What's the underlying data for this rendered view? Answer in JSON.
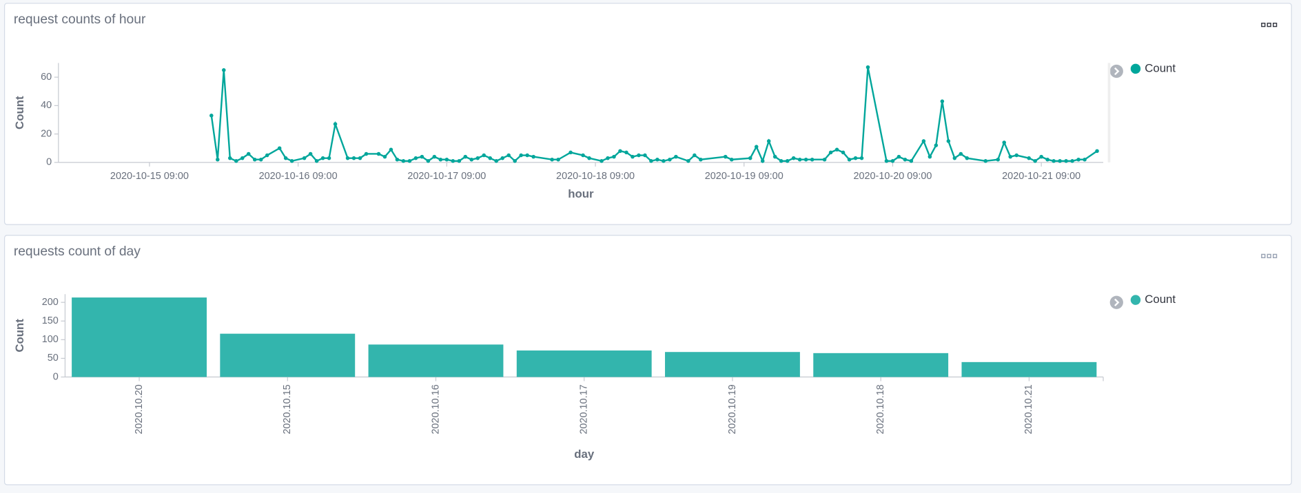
{
  "chart_data": [
    {
      "type": "line",
      "title": "request counts of hour",
      "x_label": "hour",
      "y_label": "Count",
      "legend": "right",
      "x": [
        "2020-10-15 19:00",
        "2020-10-15 20:00",
        "2020-10-15 21:00",
        "2020-10-15 22:00",
        "2020-10-15 23:00",
        "2020-10-16 00:00",
        "2020-10-16 01:00",
        "2020-10-16 02:00",
        "2020-10-16 03:00",
        "2020-10-16 04:00",
        "2020-10-16 06:00",
        "2020-10-16 07:00",
        "2020-10-16 08:00",
        "2020-10-16 10:00",
        "2020-10-16 11:00",
        "2020-10-16 12:00",
        "2020-10-16 13:00",
        "2020-10-16 14:00",
        "2020-10-16 15:00",
        "2020-10-16 17:00",
        "2020-10-16 18:00",
        "2020-10-16 19:00",
        "2020-10-16 20:00",
        "2020-10-16 22:00",
        "2020-10-16 23:00",
        "2020-10-17 00:00",
        "2020-10-17 01:00",
        "2020-10-17 02:00",
        "2020-10-17 03:00",
        "2020-10-17 04:00",
        "2020-10-17 05:00",
        "2020-10-17 06:00",
        "2020-10-17 07:00",
        "2020-10-17 08:00",
        "2020-10-17 09:00",
        "2020-10-17 10:00",
        "2020-10-17 11:00",
        "2020-10-17 12:00",
        "2020-10-17 13:00",
        "2020-10-17 14:00",
        "2020-10-17 15:00",
        "2020-10-17 16:00",
        "2020-10-17 17:00",
        "2020-10-17 18:00",
        "2020-10-17 19:00",
        "2020-10-17 20:00",
        "2020-10-17 21:00",
        "2020-10-17 22:00",
        "2020-10-17 23:00",
        "2020-10-18 02:00",
        "2020-10-18 03:00",
        "2020-10-18 05:00",
        "2020-10-18 07:00",
        "2020-10-18 08:00",
        "2020-10-18 10:00",
        "2020-10-18 11:00",
        "2020-10-18 12:00",
        "2020-10-18 13:00",
        "2020-10-18 14:00",
        "2020-10-18 15:00",
        "2020-10-18 16:00",
        "2020-10-18 17:00",
        "2020-10-18 18:00",
        "2020-10-18 19:00",
        "2020-10-18 20:00",
        "2020-10-18 21:00",
        "2020-10-18 22:00",
        "2020-10-19 00:00",
        "2020-10-19 01:00",
        "2020-10-19 02:00",
        "2020-10-19 06:00",
        "2020-10-19 07:00",
        "2020-10-19 10:00",
        "2020-10-19 11:00",
        "2020-10-19 12:00",
        "2020-10-19 13:00",
        "2020-10-19 14:00",
        "2020-10-19 15:00",
        "2020-10-19 16:00",
        "2020-10-19 17:00",
        "2020-10-19 18:00",
        "2020-10-19 19:00",
        "2020-10-19 20:00",
        "2020-10-19 22:00",
        "2020-10-19 23:00",
        "2020-10-20 00:00",
        "2020-10-20 01:00",
        "2020-10-20 02:00",
        "2020-10-20 03:00",
        "2020-10-20 04:00",
        "2020-10-20 05:00",
        "2020-10-20 08:00",
        "2020-10-20 09:00",
        "2020-10-20 10:00",
        "2020-10-20 11:00",
        "2020-10-20 12:00",
        "2020-10-20 14:00",
        "2020-10-20 15:00",
        "2020-10-20 16:00",
        "2020-10-20 17:00",
        "2020-10-20 18:00",
        "2020-10-20 19:00",
        "2020-10-20 20:00",
        "2020-10-20 21:00",
        "2020-10-21 00:00",
        "2020-10-21 02:00",
        "2020-10-21 03:00",
        "2020-10-21 04:00",
        "2020-10-21 05:00",
        "2020-10-21 07:00",
        "2020-10-21 08:00",
        "2020-10-21 09:00",
        "2020-10-21 10:00",
        "2020-10-21 11:00",
        "2020-10-21 12:00",
        "2020-10-21 13:00",
        "2020-10-21 14:00",
        "2020-10-21 15:00",
        "2020-10-21 16:00",
        "2020-10-21 18:00"
      ],
      "series": [
        {
          "name": "Count",
          "color": "#00a69b",
          "values": [
            33,
            2,
            65,
            3,
            1,
            3,
            6,
            2,
            2,
            5,
            10,
            3,
            1,
            3,
            6,
            1,
            3,
            3,
            27,
            3,
            3,
            3,
            6,
            6,
            4,
            9,
            2,
            1,
            1,
            3,
            4,
            1,
            4,
            2,
            2,
            1,
            1,
            4,
            2,
            3,
            5,
            3,
            1,
            3,
            5,
            1,
            5,
            5,
            4,
            2,
            2,
            7,
            5,
            3,
            1,
            3,
            4,
            8,
            7,
            4,
            5,
            5,
            1,
            2,
            1,
            2,
            4,
            1,
            5,
            2,
            4,
            2,
            3,
            11,
            1,
            15,
            4,
            1,
            1,
            3,
            2,
            2,
            2,
            2,
            7,
            9,
            7,
            2,
            3,
            3,
            67,
            1,
            1,
            4,
            2,
            1,
            15,
            4,
            12,
            43,
            15,
            3,
            6,
            3,
            1,
            2,
            14,
            4,
            5,
            3,
            1,
            4,
            2,
            1,
            1,
            1,
            1,
            2,
            2,
            8
          ]
        }
      ],
      "xlim": [
        "2020-10-14 18:18",
        "2020-10-21 19:00"
      ],
      "xticks": [
        "2020-10-15 09:00",
        "2020-10-16 09:00",
        "2020-10-17 09:00",
        "2020-10-18 09:00",
        "2020-10-19 09:00",
        "2020-10-20 09:00",
        "2020-10-21 09:00"
      ],
      "ylim": [
        0,
        70
      ],
      "yticks": [
        0,
        20,
        40,
        60
      ]
    },
    {
      "type": "bar",
      "title": "requests count of day",
      "x_label": "day",
      "y_label": "Count",
      "legend": "right",
      "categories": [
        "2020.10.20",
        "2020.10.15",
        "2020.10.16",
        "2020.10.17",
        "2020.10.19",
        "2020.10.18",
        "2020.10.21"
      ],
      "series": [
        {
          "name": "Count",
          "color": "#33b5ad",
          "values": [
            213,
            116,
            87,
            71,
            67,
            64,
            40
          ]
        }
      ],
      "ylim": [
        0,
        222
      ],
      "yticks": [
        0,
        50,
        100,
        150,
        200
      ]
    }
  ]
}
